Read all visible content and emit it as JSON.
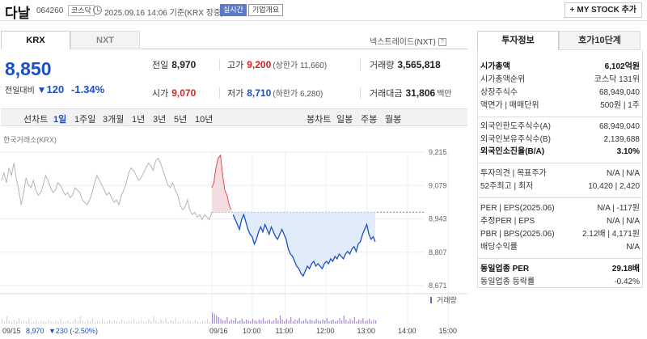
{
  "header": {
    "stock_name": "다날",
    "stock_code": "064260",
    "market": "코스닥",
    "basis_time": "2025.09.16 14:06 기준(KRX 장중)",
    "realtime_label": "실시간",
    "overview_label": "기업개요",
    "mystock_label": "MY STOCK 추가",
    "mystock_plus": "+"
  },
  "market_tabs": [
    "KRX",
    "NXT"
  ],
  "nextrade_label": "넥스트레이드(NXT)",
  "help_glyph": "?",
  "price": {
    "current": "8,850",
    "change_label": "전일대비",
    "change_arrow": "▼",
    "change_value": "120",
    "change_rate": "-1.34%"
  },
  "quotes": {
    "prev_label": "전일",
    "prev_value": "8,970",
    "high_label": "고가",
    "high_value": "9,200",
    "upper_limit": "(상한가 11,660)",
    "volume_label": "거래량",
    "volume_value": "3,565,818",
    "open_label": "시가",
    "open_value": "9,070",
    "low_label": "저가",
    "low_value": "8,710",
    "lower_limit": "(하한가 6,280)",
    "amount_label": "거래대금",
    "amount_value": "31,806",
    "amount_unit": "백만"
  },
  "periods": [
    "선차트",
    "1일",
    "1주일",
    "3개월",
    "1년",
    "3년",
    "5년",
    "10년"
  ],
  "chart_kinds": [
    "봉차트",
    "일봉",
    "주봉",
    "월봉"
  ],
  "chart_source": "한국거래소(KRX)",
  "right_tabs": [
    "투자정보",
    "호가10단계"
  ],
  "invest": {
    "mcap_label": "시가총액",
    "mcap_value": "6,102억원",
    "rank_label": "시가총액순위",
    "rank_value": "코스닥 131위",
    "shares_label": "상장주식수",
    "shares_value": "68,949,040",
    "face_label": "액면가 | 매매단위",
    "face_value": "500원 | 1주",
    "flimit_label": "외국인한도주식수(A)",
    "flimit_value": "68,949,040",
    "fhold_label": "외국인보유주식수(B)",
    "fhold_value": "2,139,688",
    "fratio_label": "외국인소진율(B/A)",
    "fratio_value": "3.10%",
    "opinion_label": "투자의견 | 목표주가",
    "opinion_value": "N/A | N/A",
    "range_label": "52주최고 | 최저",
    "range_value": "10,420 | 2,420",
    "per_label": "PER | EPS(2025.06)",
    "per_value": "N/A | -117원",
    "eper_label": "추정PER | EPS",
    "eper_value": "N/A | N/A",
    "pbr_label": "PBR | BPS(2025.06)",
    "pbr_value": "2.12배 | 4,171원",
    "div_label": "배당수익률",
    "div_value": "N/A",
    "sector_per_label": "동일업종 PER",
    "sector_per_value": "29.18배",
    "sector_rate_label": "동일업종 등락률",
    "sector_rate_value": "-0.42%"
  },
  "colors": {
    "up": "#d62424",
    "down": "#1a4fc9",
    "fill": "#dfe9fa"
  },
  "chart_data": {
    "type": "line",
    "title": "",
    "xlabel": "",
    "ylabel": "",
    "prev_close": 8970,
    "ylim": [
      8671,
      9215
    ],
    "y_ticks": [
      "9,215",
      "9,079",
      "8,943",
      "8,807",
      "8,671"
    ],
    "x_ticks": [
      "09/16",
      "10:00",
      "11:00",
      "12:00",
      "13:00",
      "14:00",
      "15:00"
    ],
    "volume_legend": "거래량",
    "bottom_left": "09/15",
    "bottom_value": "8,970",
    "bottom_change": "▼230 (-2.50%)",
    "prev_day_series": [
      [
        9100,
        9130,
        9090,
        9150,
        9120,
        9170,
        9110,
        9060,
        9000,
        9050,
        9110,
        9080,
        9070,
        9100,
        9060,
        9040,
        9050,
        9080,
        9120,
        9100,
        9070,
        9050,
        9060,
        9090,
        9080,
        9060,
        9040,
        9050,
        9030,
        9040,
        9070,
        9060,
        9050,
        9020,
        9010,
        9000,
        9020,
        9050,
        9090,
        9120,
        9100,
        9080,
        9060,
        9040,
        9050,
        9030,
        9010,
        9020,
        9000,
        9040,
        9060,
        9090,
        9130,
        9150,
        9140,
        9120,
        9100,
        9110,
        9130,
        9150,
        9170,
        9160,
        9140,
        9180,
        9190,
        9170,
        9140,
        9110,
        9080,
        9070,
        9090,
        9060,
        9040,
        9000,
        8980,
        8990,
        9020,
        8980,
        8960,
        8970,
        8950,
        8960,
        8940,
        8960,
        8950,
        8940,
        8970
      ]
    ],
    "today_series": [
      9070,
      9090,
      9150,
      9190,
      9200,
      9120,
      9060,
      9040,
      9000,
      8980,
      8960,
      8940,
      8920,
      8900,
      8940,
      8960,
      8930,
      8900,
      8880,
      8870,
      8840,
      8860,
      8890,
      8910,
      8890,
      8920,
      8900,
      8880,
      8910,
      8890,
      8870,
      8860,
      8880,
      8900,
      8880,
      8860,
      8820,
      8800,
      8790,
      8770,
      8750,
      8740,
      8720,
      8710,
      8730,
      8750,
      8740,
      8760,
      8770,
      8750,
      8760,
      8750,
      8740,
      8760,
      8770,
      8760,
      8780,
      8770,
      8790,
      8780,
      8800,
      8790,
      8780,
      8800,
      8810,
      8800,
      8820,
      8830,
      8810,
      8840,
      8850,
      8880,
      8900,
      8920,
      8880,
      8860,
      8870,
      8850
    ]
  }
}
